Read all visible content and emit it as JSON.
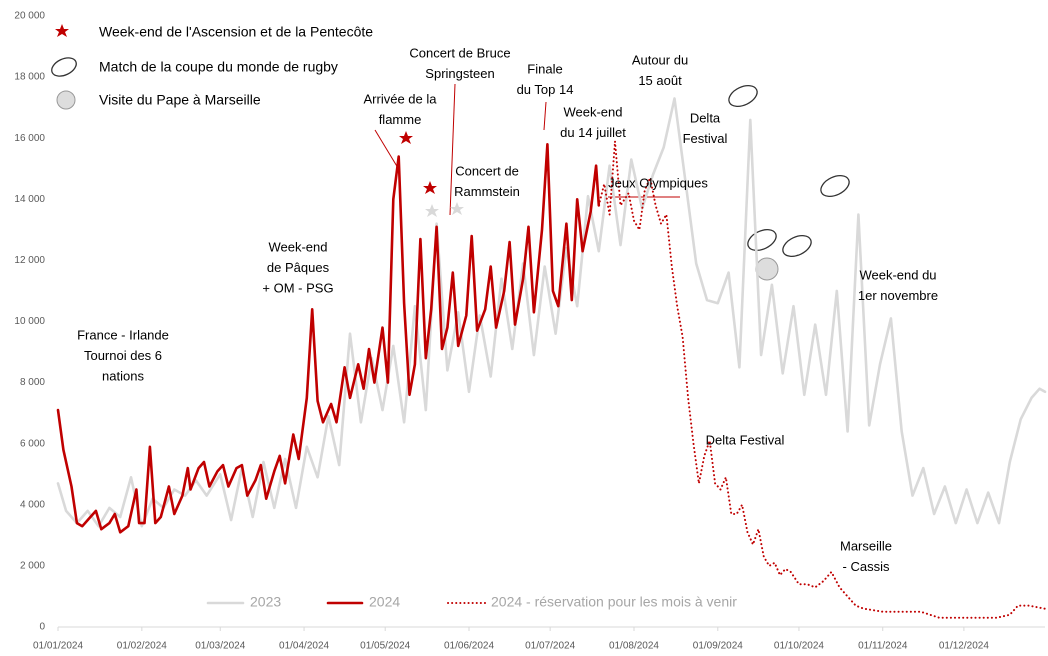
{
  "chart_data": {
    "type": "line",
    "markers_legend": [
      "Week-end de l'Ascension et de la Pentecôte",
      "Match de la coupe du monde de rugby",
      "Visite du Pape à Marseille"
    ],
    "annotations": [
      [
        "France - Irlande",
        "Tournoi des 6",
        "nations"
      ],
      [
        "Week-end",
        "de Pâques",
        "+ OM - PSG"
      ],
      [
        "Arrivée de la",
        "flamme"
      ],
      [
        "Concert de Bruce",
        "Springsteen"
      ],
      [
        "Concert de",
        "Rammstein"
      ],
      [
        "Finale",
        "du Top 14"
      ],
      [
        "Autour du",
        "15 août"
      ],
      [
        "Week-end",
        "du 14 juillet"
      ],
      [
        "Delta",
        "Festival"
      ],
      [
        "Jeux Olympiques"
      ],
      [
        "Delta Festival"
      ],
      [
        "Week-end du",
        "1er novembre"
      ],
      [
        "Marseille",
        "- Cassis"
      ]
    ],
    "xlim": [
      "01/01/2024",
      "31/12/2024"
    ],
    "xticks": [
      "01/01/2024",
      "01/02/2024",
      "01/03/2024",
      "01/04/2024",
      "01/05/2024",
      "01/06/2024",
      "01/07/2024",
      "01/08/2024",
      "01/09/2024",
      "01/10/2024",
      "01/11/2024",
      "01/12/2024"
    ],
    "ylim": [
      0,
      20000
    ],
    "yticks": [
      0,
      {
        "value": 2000,
        "label": "2 000"
      },
      {
        "value": 4000,
        "label": "4 000"
      },
      {
        "value": 6000,
        "label": "6 000"
      },
      {
        "value": 8000,
        "label": "8 000"
      },
      {
        "value": 10000,
        "label": "10 000"
      },
      {
        "value": 12000,
        "label": "12 000"
      },
      {
        "value": 14000,
        "label": "14 000"
      },
      {
        "value": 16000,
        "label": "16 000"
      },
      {
        "value": 18000,
        "label": "18 000"
      },
      {
        "value": 20000,
        "label": "20 000"
      }
    ],
    "series": [
      {
        "name": "2023",
        "color": "#d9d9d9",
        "style": "solid",
        "x": [
          "01/01/2024",
          "04/01/2024",
          "08/01/2024",
          "12/01/2024",
          "16/01/2024",
          "20/01/2024",
          "24/01/2024",
          "28/01/2024",
          "01/02/2024",
          "05/02/2024",
          "09/02/2024",
          "13/02/2024",
          "17/02/2024",
          "21/02/2024",
          "25/02/2024",
          "01/03/2024",
          "05/03/2024",
          "09/03/2024",
          "13/03/2024",
          "17/03/2024",
          "21/03/2024",
          "25/03/2024",
          "29/03/2024",
          "02/04/2024",
          "06/04/2024",
          "10/04/2024",
          "14/04/2024",
          "18/04/2024",
          "22/04/2024",
          "26/04/2024",
          "30/04/2024",
          "04/05/2024",
          "08/05/2024",
          "12/05/2024",
          "16/05/2024",
          "20/05/2024",
          "24/05/2024",
          "28/05/2024",
          "01/06/2024",
          "05/06/2024",
          "09/06/2024",
          "13/06/2024",
          "17/06/2024",
          "21/06/2024",
          "25/06/2024",
          "29/06/2024",
          "03/07/2024",
          "07/07/2024",
          "11/07/2024",
          "15/07/2024",
          "19/07/2024",
          "23/07/2024",
          "27/07/2024",
          "31/07/2024",
          "04/08/2024",
          "08/08/2024",
          "12/08/2024",
          "16/08/2024",
          "20/08/2024",
          "24/08/2024",
          "28/08/2024",
          "01/09/2024",
          "05/09/2024",
          "09/09/2024",
          "13/09/2024",
          "17/09/2024",
          "21/09/2024",
          "25/09/2024",
          "29/09/2024",
          "03/10/2024",
          "07/10/2024",
          "11/10/2024",
          "15/10/2024",
          "19/10/2024",
          "23/10/2024",
          "27/10/2024",
          "31/10/2024",
          "04/11/2024",
          "08/11/2024",
          "12/11/2024",
          "16/11/2024",
          "20/11/2024",
          "24/11/2024",
          "28/11/2024",
          "02/12/2024",
          "06/12/2024",
          "10/12/2024",
          "14/12/2024",
          "18/12/2024",
          "22/12/2024",
          "26/12/2024",
          "29/12/2024",
          "31/12/2024"
        ],
        "values": [
          4700,
          3800,
          3400,
          3800,
          3300,
          3900,
          3600,
          4900,
          3300,
          4200,
          3900,
          4500,
          4300,
          4800,
          4300,
          5000,
          3500,
          5200,
          3600,
          5400,
          3900,
          5500,
          3900,
          5900,
          4900,
          6900,
          5300,
          9600,
          6700,
          8800,
          7100,
          9200,
          6700,
          10500,
          7100,
          13200,
          8400,
          10300,
          7700,
          10200,
          8200,
          11400,
          9100,
          11900,
          8900,
          11800,
          9600,
          12400,
          10500,
          14100,
          12300,
          15100,
          12500,
          15300,
          13700,
          14800,
          15700,
          17300,
          14600,
          11900,
          10700,
          10600,
          11600,
          8500,
          16600,
          8900,
          11200,
          8300,
          10500,
          7600,
          9900,
          7600,
          11000,
          6400,
          13500,
          6600,
          8600,
          10100,
          6400,
          4300,
          5200,
          3700,
          4600,
          3400,
          4500,
          3400,
          4400,
          3400,
          5400,
          6800,
          7500,
          7800,
          7700
        ]
      },
      {
        "name": "2024",
        "color": "#c00000",
        "style": "solid",
        "x": [
          "01/01/2024",
          "03/01/2024",
          "06/01/2024",
          "08/01/2024",
          "10/01/2024",
          "13/01/2024",
          "15/01/2024",
          "17/01/2024",
          "20/01/2024",
          "22/01/2024",
          "24/01/2024",
          "27/01/2024",
          "30/01/2024",
          "31/01/2024",
          "02/02/2024",
          "04/02/2024",
          "06/02/2024",
          "08/02/2024",
          "11/02/2024",
          "13/02/2024",
          "16/02/2024",
          "18/02/2024",
          "19/02/2024",
          "22/02/2024",
          "24/02/2024",
          "26/02/2024",
          "29/02/2024",
          "02/03/2024",
          "04/03/2024",
          "07/03/2024",
          "09/03/2024",
          "11/03/2024",
          "14/03/2024",
          "16/03/2024",
          "18/03/2024",
          "21/03/2024",
          "23/03/2024",
          "25/03/2024",
          "28/03/2024",
          "30/03/2024",
          "02/04/2024",
          "04/04/2024",
          "06/04/2024",
          "08/04/2024",
          "11/04/2024",
          "13/04/2024",
          "16/04/2024",
          "18/04/2024",
          "21/04/2024",
          "23/04/2024",
          "25/04/2024",
          "27/04/2024",
          "30/04/2024",
          "02/05/2024",
          "04/05/2024",
          "06/05/2024",
          "08/05/2024",
          "10/05/2024",
          "12/05/2024",
          "14/05/2024",
          "16/05/2024",
          "18/05/2024",
          "20/05/2024",
          "22/05/2024",
          "24/05/2024",
          "26/05/2024",
          "28/05/2024",
          "31/05/2024",
          "02/06/2024",
          "04/06/2024",
          "07/06/2024",
          "09/06/2024",
          "11/06/2024",
          "14/06/2024",
          "16/06/2024",
          "18/06/2024",
          "21/06/2024",
          "23/06/2024",
          "25/06/2024",
          "28/06/2024",
          "30/06/2024",
          "02/07/2024",
          "04/07/2024",
          "07/07/2024",
          "09/07/2024",
          "11/07/2024",
          "13/07/2024",
          "16/07/2024",
          "18/07/2024",
          "19/07/2024"
        ],
        "values": [
          7100,
          5800,
          4600,
          3400,
          3300,
          3600,
          3800,
          3200,
          3400,
          3700,
          3100,
          3300,
          4500,
          3400,
          3400,
          5900,
          3400,
          3600,
          4600,
          3700,
          4300,
          5200,
          4500,
          5200,
          5400,
          4600,
          5100,
          5300,
          4600,
          5200,
          5300,
          4300,
          4800,
          5300,
          4200,
          5100,
          5600,
          4700,
          6300,
          5500,
          7500,
          10400,
          7400,
          6700,
          7300,
          6700,
          8500,
          7500,
          8600,
          7800,
          9100,
          8000,
          9800,
          8000,
          14000,
          15400,
          10600,
          7600,
          8600,
          12700,
          8800,
          10400,
          13100,
          9100,
          9800,
          11600,
          9200,
          10200,
          12800,
          9700,
          10400,
          11800,
          9800,
          11000,
          12600,
          9900,
          11400,
          13100,
          10300,
          13000,
          15800,
          11000,
          10500,
          13200,
          10700,
          14000,
          12300,
          13600,
          15100,
          13800
        ]
      },
      {
        "name": "2024 - réservation pour les mois à venir",
        "color": "#c00000",
        "style": "dotted",
        "x": [
          "19/07/2024",
          "21/07/2024",
          "23/07/2024",
          "25/07/2024",
          "27/07/2024",
          "30/07/2024",
          "01/08/2024",
          "03/08/2024",
          "05/08/2024",
          "07/08/2024",
          "09/08/2024",
          "11/08/2024",
          "13/08/2024",
          "15/08/2024",
          "17/08/2024",
          "19/08/2024",
          "21/08/2024",
          "23/08/2024",
          "25/08/2024",
          "27/08/2024",
          "29/08/2024",
          "31/08/2024",
          "02/09/2024",
          "04/09/2024",
          "06/09/2024",
          "08/09/2024",
          "10/09/2024",
          "12/09/2024",
          "14/09/2024",
          "16/09/2024",
          "18/09/2024",
          "20/09/2024",
          "22/09/2024",
          "24/09/2024",
          "26/09/2024",
          "28/09/2024",
          "01/10/2024",
          "04/10/2024",
          "07/10/2024",
          "10/10/2024",
          "13/10/2024",
          "16/10/2024",
          "19/10/2024",
          "22/10/2024",
          "25/10/2024",
          "01/11/2024",
          "08/11/2024",
          "15/11/2024",
          "22/11/2024",
          "29/11/2024",
          "06/12/2024",
          "13/12/2024",
          "18/12/2024",
          "21/12/2024",
          "25/12/2024",
          "31/12/2024"
        ],
        "values": [
          13800,
          14500,
          13500,
          15900,
          13800,
          14200,
          13300,
          13000,
          14300,
          14700,
          13800,
          13200,
          13500,
          11800,
          10500,
          9500,
          7500,
          6000,
          4700,
          5600,
          6100,
          4700,
          4500,
          4900,
          3700,
          3700,
          4000,
          3100,
          2700,
          3200,
          2300,
          2000,
          2100,
          1700,
          1900,
          1800,
          1400,
          1400,
          1300,
          1500,
          1800,
          1300,
          1000,
          700,
          600,
          500,
          500,
          500,
          300,
          300,
          300,
          300,
          400,
          700,
          700,
          600
        ]
      }
    ]
  }
}
